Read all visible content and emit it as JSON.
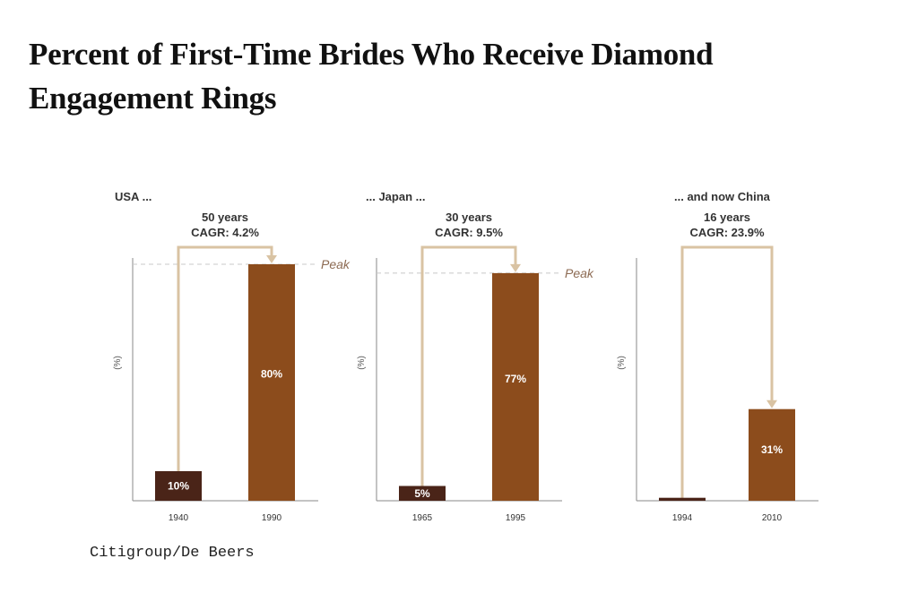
{
  "title": "Percent of First-Time Brides Who Receive Diamond Engagement Rings",
  "source": "Citigroup/De Beers",
  "colors": {
    "before_bar": "#4a2418",
    "after_bar": "#8c4c1c",
    "connector": "#d9c3a3",
    "peak_line": "#c8c8c8",
    "peak_text": "#8c6a52",
    "axis": "#8a8a8a"
  },
  "chart_data": [
    {
      "type": "bar",
      "title": "USA ...",
      "ylabel": "(%)",
      "categories": [
        "1940",
        "1990"
      ],
      "values": [
        10,
        80
      ],
      "data_labels": [
        "10%",
        "80%"
      ],
      "annotation": {
        "period": "50 years",
        "cagr": "CAGR: 4.2%"
      },
      "peak_label": "Peak",
      "ylim": [
        0,
        100
      ]
    },
    {
      "type": "bar",
      "title": "... Japan ...",
      "ylabel": "(%)",
      "categories": [
        "1965",
        "1995"
      ],
      "values": [
        5,
        77
      ],
      "data_labels": [
        "5%",
        "77%"
      ],
      "annotation": {
        "period": "30 years",
        "cagr": "CAGR: 9.5%"
      },
      "peak_label": "Peak",
      "ylim": [
        0,
        100
      ]
    },
    {
      "type": "bar",
      "title": "... and now China",
      "ylabel": "(%)",
      "categories": [
        "1994",
        "2010"
      ],
      "values": [
        1,
        31
      ],
      "data_labels": [
        "",
        "31%"
      ],
      "annotation": {
        "period": "16 years",
        "cagr": "CAGR: 23.9%"
      },
      "peak_label": "",
      "ylim": [
        0,
        100
      ]
    }
  ]
}
